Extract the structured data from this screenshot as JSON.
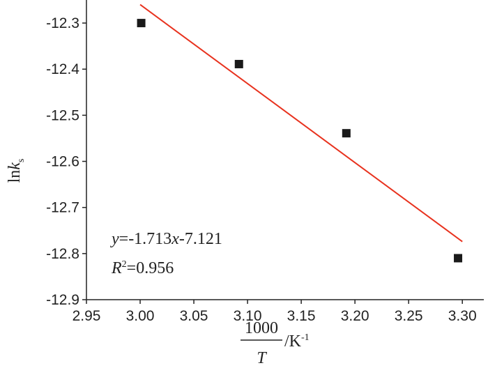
{
  "chart_data": {
    "type": "scatter",
    "x_label": [
      "1000",
      "T",
      "/K",
      "-1"
    ],
    "y_label": [
      "ln",
      "k",
      "s"
    ],
    "annotations": {
      "equation": [
        "y",
        "=-1.713",
        "x",
        "-7.121"
      ],
      "r_squared": [
        "R",
        "2",
        "=0.956"
      ]
    },
    "x": [
      3.001,
      3.092,
      3.192,
      3.296
    ],
    "values": [
      -12.3,
      -12.389,
      -12.539,
      -12.81
    ],
    "color": "#1a1a1a",
    "fit_line": {
      "x": [
        3.0,
        3.3
      ],
      "values": [
        -12.26,
        -12.774
      ],
      "color": "#e8321e"
    },
    "xlim": [
      2.95,
      3.32
    ],
    "ylim": [
      -12.9,
      -12.25
    ],
    "xticks": [
      2.95,
      {
        "value": 3.0,
        "label": "3.00"
      },
      3.05,
      {
        "value": 3.1,
        "label": "3.10"
      },
      3.15,
      {
        "value": 3.2,
        "label": "3.20"
      },
      3.25,
      {
        "value": 3.3,
        "label": "3.30"
      }
    ],
    "yticks": [
      -12.3,
      -12.4,
      -12.5,
      -12.6,
      -12.7,
      -12.8,
      -12.9
    ]
  }
}
